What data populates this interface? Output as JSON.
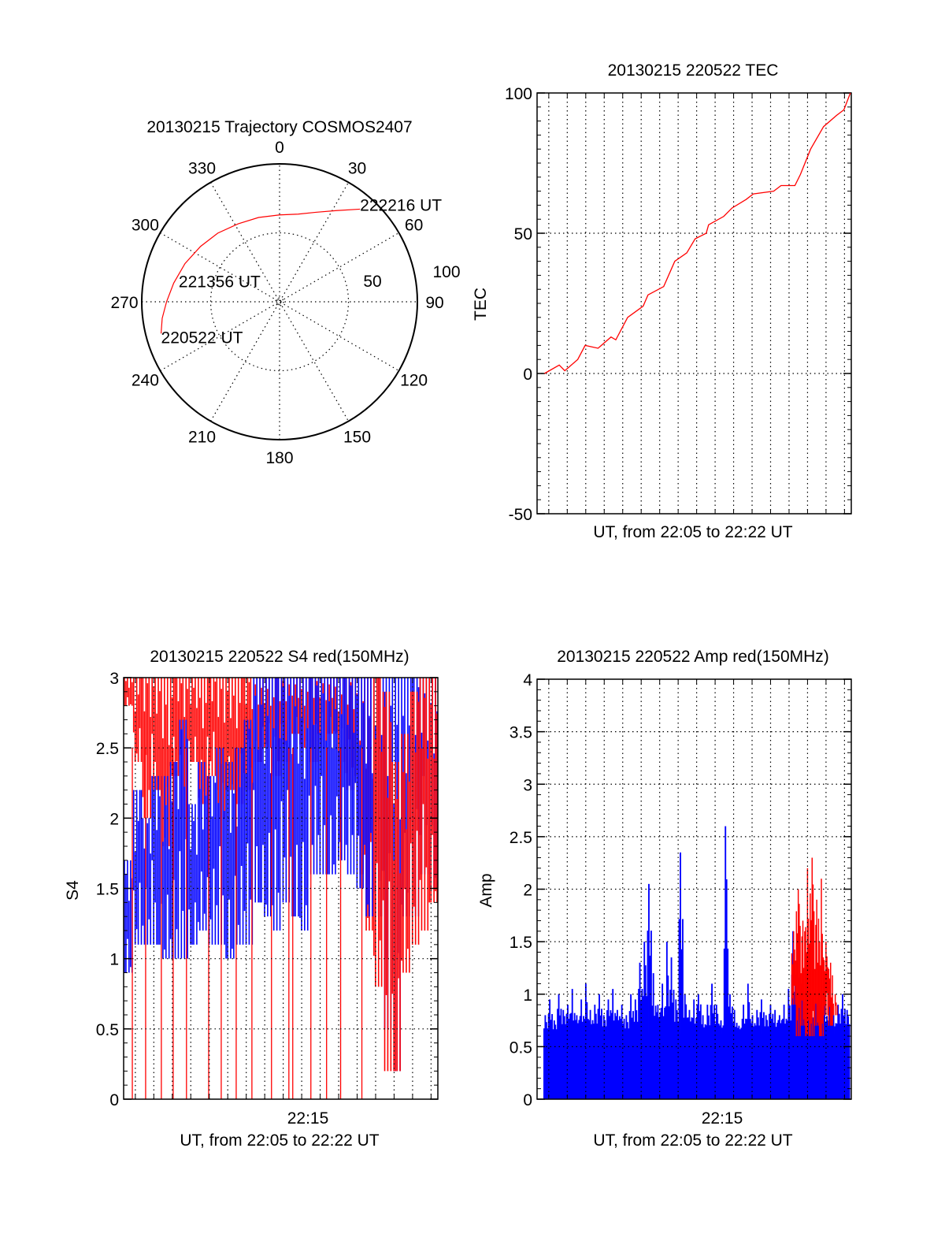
{
  "chart_data": [
    {
      "type": "polar",
      "title": "20130215 Trajectory COSMOS2407",
      "azimuth_labels": [
        "0",
        "30",
        "60",
        "90",
        "120",
        "150",
        "180",
        "210",
        "240",
        "270",
        "300",
        "330"
      ],
      "ring_labels": [
        "50",
        "100"
      ],
      "rlim": [
        0,
        100
      ],
      "series_color": "#ff0000",
      "trajectory": {
        "azimuth_deg": [
          255,
          262,
          270,
          280,
          292,
          305,
          318,
          332,
          346,
          0,
          12,
          22,
          32,
          41
        ],
        "zenith": [
          89,
          86,
          82,
          78,
          74,
          70,
          67,
          64,
          63,
          63,
          65,
          70,
          78,
          89
        ]
      },
      "annotations": [
        {
          "text": "220522 UT",
          "at": "start"
        },
        {
          "text": "221356 UT",
          "at": "middle"
        },
        {
          "text": "222216 UT",
          "at": "end"
        }
      ]
    },
    {
      "type": "line",
      "title": "20130215 220522 TEC",
      "xlabel": "UT, from 22:05 to 22:22 UT",
      "ylabel": "TEC",
      "xlim_minutes": [
        0,
        17
      ],
      "ylim": [
        -50,
        100
      ],
      "yticks": [
        "-50",
        "0",
        "50",
        "100"
      ],
      "grid": true,
      "color": "#ff0000",
      "x_minutes": [
        0.4,
        1.2,
        1.5,
        2.2,
        2.6,
        3.3,
        4.0,
        4.26,
        4.9,
        5.74,
        6.0,
        6.85,
        7.45,
        8.1,
        8.55,
        9.15,
        9.28,
        10.1,
        10.55,
        11.3,
        11.7,
        12.8,
        13.2,
        13.95,
        14.25,
        14.8,
        15.5,
        16.2,
        16.6,
        16.95
      ],
      "values": [
        0,
        3,
        1,
        5,
        10,
        9,
        13,
        12,
        20,
        24,
        28,
        31,
        40,
        43,
        48,
        50,
        53,
        56,
        59,
        62,
        64,
        65,
        67,
        67,
        71,
        80,
        88,
        92,
        94,
        100
      ]
    },
    {
      "type": "line",
      "title": "20130215 220522 S4 red(150MHz)",
      "xlabel": "UT, from 22:05 to 22:22 UT",
      "ylabel": "S4",
      "xtick": "22:15",
      "xlim_minutes": [
        0,
        17
      ],
      "ylim": [
        0,
        3
      ],
      "yticks": [
        "0",
        "0.5",
        "1",
        "1.5",
        "2",
        "2.5",
        "3"
      ],
      "grid": true,
      "bin_minutes": 0.5,
      "series": [
        {
          "name": "blue",
          "color": "#0000ff",
          "low": [
            0.9,
            1.1,
            1.1,
            1.1,
            1.0,
            1.0,
            1.0,
            1.1,
            1.2,
            1.1,
            1.1,
            1.0,
            1.1,
            1.1,
            1.4,
            1.3,
            1.2,
            1.4,
            1.3,
            1.2,
            1.6,
            1.6,
            1.6,
            1.7,
            1.6,
            1.5,
            1.3,
            1.3,
            0.5,
            0.2,
            1.3,
            1.3,
            1.6,
            1.5
          ],
          "high": [
            1.7,
            2.2,
            2.0,
            2.3,
            2.3,
            2.4,
            2.7,
            2.1,
            2.4,
            2.3,
            2.5,
            2.4,
            2.5,
            2.7,
            3,
            3,
            3,
            3,
            3,
            3,
            3,
            3,
            3,
            3,
            3,
            3,
            3,
            3,
            3,
            3,
            3,
            3,
            3,
            3
          ]
        },
        {
          "name": "red",
          "color": "#ff0000",
          "low": [
            2.8,
            2.4,
            2.0,
            2.2,
            1.8,
            2.3,
            2.0,
            2.4,
            2.1,
            2.3,
            2.0,
            2.2,
            2.1,
            2.2,
            2.4,
            2.5,
            2.3,
            2.4,
            2.6,
            2.5,
            2.4,
            2.5,
            2.6,
            2.4,
            2.2,
            1.6,
            1.2,
            0.8,
            0.2,
            0.2,
            0.9,
            1.1,
            1.2,
            1.4
          ],
          "high": [
            3,
            3,
            3,
            3,
            3,
            3,
            3,
            3,
            3,
            3,
            3,
            3,
            3,
            3,
            3,
            3,
            3,
            3,
            3,
            3,
            3,
            3,
            3,
            3,
            3,
            3,
            3,
            3,
            2.9,
            2.4,
            2.6,
            2.9,
            3,
            3
          ],
          "drops_to_zero_minutes": [
            0.47,
            1.19,
            2.04,
            2.68,
            3.4,
            4.6,
            5.28,
            6.09,
            6.94,
            8.0,
            8.94,
            9.15,
            10.13,
            10.98,
            11.74,
            12.89
          ]
        }
      ]
    },
    {
      "type": "bar",
      "title": "20130215 220522 Amp red(150MHz)",
      "xlabel": "UT, from 22:05 to 22:22 UT",
      "ylabel": "Amp",
      "xtick": "22:15",
      "xlim_minutes": [
        0,
        17
      ],
      "ylim": [
        0,
        4
      ],
      "yticks": [
        "0",
        "0.5",
        "1",
        "1.5",
        "2",
        "2.5",
        "3",
        "3.5",
        "4"
      ],
      "grid": true,
      "bin_minutes": 0.25,
      "series": [
        {
          "name": "blue",
          "color": "#0000ff",
          "values": [
            0.8,
            0.95,
            0.75,
            1.0,
            0.85,
            0.9,
            1.05,
            0.8,
            0.95,
            1.1,
            0.85,
            0.9,
            1.0,
            0.8,
            0.95,
            1.05,
            0.85,
            0.9,
            0.8,
            1.0,
            0.95,
            1.3,
            1.5,
            2.05,
            1.2,
            0.9,
            1.1,
            1.5,
            1.35,
            0.95,
            2.35,
            1.0,
            0.85,
            0.95,
            1.0,
            0.8,
            0.9,
            1.1,
            0.9,
            0.75,
            2.6,
            1.0,
            0.85,
            0.7,
            0.9,
            1.1,
            0.8,
            0.85,
            0.95,
            0.8,
            0.9,
            0.85,
            0.8,
            0.9,
            1.05,
            1.6,
            1.4,
            1.1,
            1.0,
            0.85,
            1.2,
            0.9,
            0.95,
            1.05,
            0.8,
            0.9,
            1.0,
            0.85
          ]
        },
        {
          "name": "red",
          "color": "#ff0000",
          "start_bin": 55,
          "low": [
            0.9,
            0.6,
            0.7,
            0.6,
            0.6,
            0.7,
            0.6,
            0.8,
            0.7,
            0.8
          ],
          "values": [
            1.6,
            2.0,
            1.7,
            2.2,
            2.3,
            1.9,
            2.1,
            1.5,
            1.3,
            1.0
          ]
        }
      ]
    }
  ]
}
